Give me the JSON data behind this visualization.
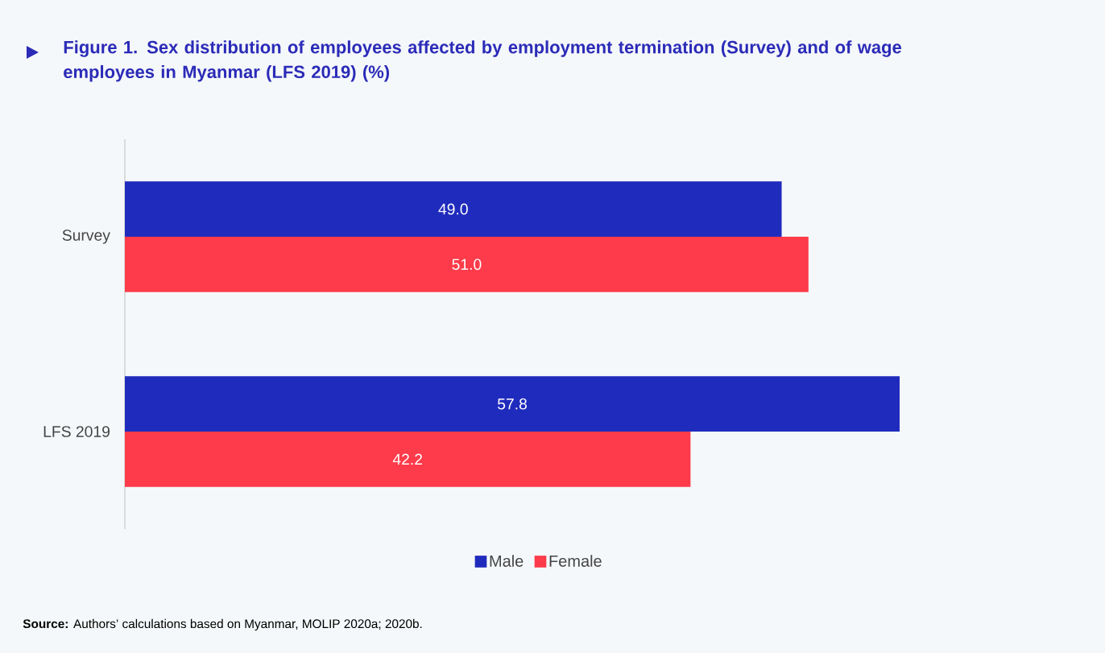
{
  "chart_data": {
    "type": "bar",
    "orientation": "horizontal",
    "title": "Figure 1. Sex distribution of employees affected by employment termination (Survey) and of wage employees in Myanmar (LFS 2019) (%)",
    "categories": [
      "Survey",
      "LFS 2019"
    ],
    "series": [
      {
        "name": "Male",
        "color": "#1f2bbd",
        "values": [
          49.0,
          57.8
        ],
        "value_labels": [
          "49.0",
          "57.8"
        ]
      },
      {
        "name": "Female",
        "color": "#fd3b4a",
        "values": [
          51.0,
          42.2
        ],
        "value_labels": [
          "51.0",
          "42.2"
        ]
      }
    ],
    "legend": "bottom",
    "annotations": [
      "**Source:** Authors’ calculations based on Myanmar, MOLIP 2020a; 2020b."
    ]
  }
}
